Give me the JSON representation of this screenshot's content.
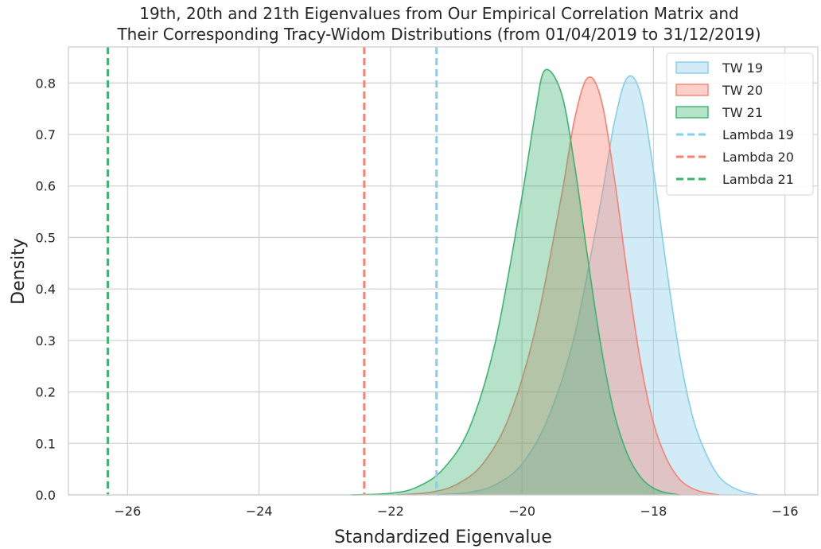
{
  "chart_data": {
    "type": "area",
    "title_line1": "19th, 20th and 21th Eigenvalues from Our Empirical Correlation Matrix and",
    "title_line2": "Their Corresponding Tracy-Widom Distributions (from 01/04/2019 to 31/12/2019)",
    "xlabel": "Standardized Eigenvalue",
    "ylabel": "Density",
    "xlim": [
      -26.9,
      -15.5
    ],
    "ylim": [
      0,
      0.87
    ],
    "xticks": [
      -26,
      -24,
      -22,
      -20,
      -18,
      -16
    ],
    "xtick_labels": [
      "−26",
      "−24",
      "−22",
      "−20",
      "−18",
      "−16"
    ],
    "yticks": [
      0.0,
      0.1,
      0.2,
      0.3,
      0.4,
      0.5,
      0.6,
      0.7,
      0.8
    ],
    "ytick_labels": [
      "0.0",
      "0.1",
      "0.2",
      "0.3",
      "0.4",
      "0.5",
      "0.6",
      "0.7",
      "0.8"
    ],
    "grid": true,
    "legend_position": "top-right",
    "series": [
      {
        "name": "TW 19",
        "kind": "density",
        "color": "#87ceeb",
        "x": [
          -21.3,
          -20.8,
          -20.4,
          -20.0,
          -19.6,
          -19.2,
          -18.8,
          -18.6,
          -18.4,
          -18.2,
          -18.0,
          -17.8,
          -17.6,
          -17.4,
          -17.2,
          -17.0,
          -16.8,
          -16.6,
          -16.4
        ],
        "y": [
          0.0,
          0.005,
          0.02,
          0.06,
          0.15,
          0.31,
          0.57,
          0.72,
          0.81,
          0.78,
          0.63,
          0.44,
          0.27,
          0.15,
          0.08,
          0.035,
          0.015,
          0.005,
          0.0
        ]
      },
      {
        "name": "TW 20",
        "kind": "density",
        "color": "#fa8072",
        "x": [
          -21.9,
          -21.4,
          -21.0,
          -20.6,
          -20.2,
          -19.8,
          -19.4,
          -19.2,
          -19.0,
          -18.8,
          -18.6,
          -18.4,
          -18.2,
          -18.0,
          -17.8,
          -17.6,
          -17.4,
          -17.2,
          -17.0
        ],
        "y": [
          0.0,
          0.005,
          0.02,
          0.06,
          0.15,
          0.32,
          0.58,
          0.73,
          0.81,
          0.77,
          0.62,
          0.43,
          0.26,
          0.14,
          0.07,
          0.03,
          0.012,
          0.004,
          0.0
        ]
      },
      {
        "name": "TW 21",
        "kind": "density",
        "color": "#3cb371",
        "x": [
          -22.6,
          -22.0,
          -21.6,
          -21.2,
          -20.8,
          -20.4,
          -20.0,
          -19.8,
          -19.65,
          -19.4,
          -19.2,
          -19.0,
          -18.8,
          -18.6,
          -18.4,
          -18.2,
          -18.0,
          -17.8,
          -17.6
        ],
        "y": [
          0.0,
          0.003,
          0.015,
          0.05,
          0.13,
          0.3,
          0.58,
          0.74,
          0.825,
          0.78,
          0.64,
          0.46,
          0.29,
          0.16,
          0.08,
          0.035,
          0.013,
          0.004,
          0.0
        ]
      },
      {
        "name": "Lambda 19",
        "kind": "vline",
        "color": "#87ceeb",
        "x": -21.3
      },
      {
        "name": "Lambda 20",
        "kind": "vline",
        "color": "#fa8072",
        "x": -22.4
      },
      {
        "name": "Lambda 21",
        "kind": "vline",
        "color": "#3cb371",
        "x": -26.3
      }
    ]
  }
}
